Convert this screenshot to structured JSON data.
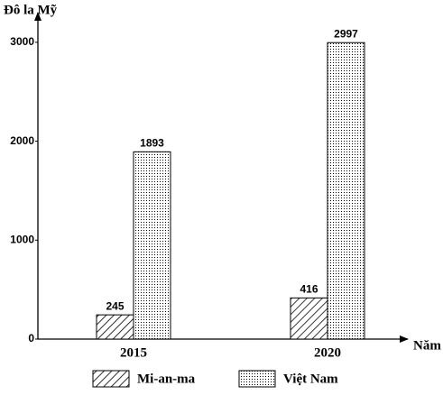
{
  "chart_data": {
    "type": "bar",
    "y_label": "Đô la Mỹ",
    "x_label": "Năm",
    "categories": [
      "2015",
      "2020"
    ],
    "series": [
      {
        "name": "Mi-an-ma",
        "color": "#000000",
        "pattern": "hatch",
        "values": [
          245,
          416
        ]
      },
      {
        "name": "Việt Nam",
        "color": "#000000",
        "pattern": "dots",
        "values": [
          1893,
          2997
        ]
      }
    ],
    "ylim": [
      0,
      3300
    ],
    "yticks": [
      0,
      1000,
      2000,
      3000
    ],
    "grid": false,
    "legend": "bottom"
  }
}
